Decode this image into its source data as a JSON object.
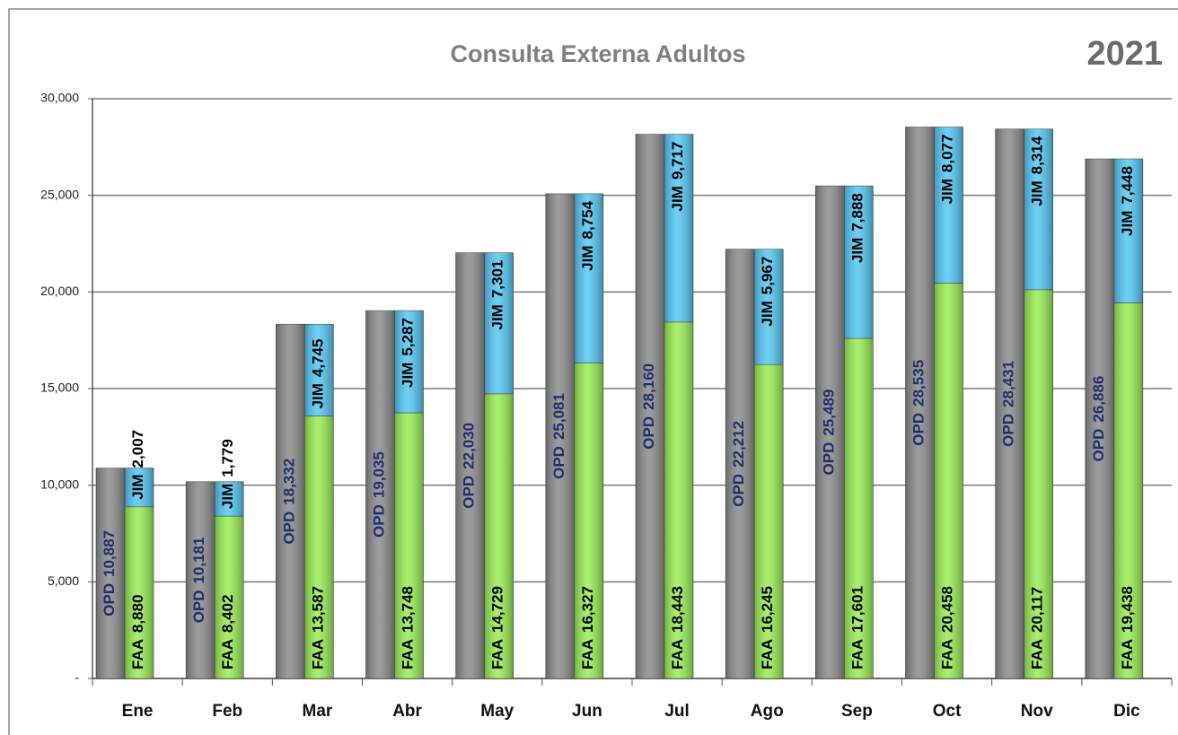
{
  "chart_data": {
    "type": "bar",
    "title": "Consulta Externa Adultos",
    "subtitle": "2021",
    "categories": [
      "Ene",
      "Feb",
      "Mar",
      "Abr",
      "May",
      "Jun",
      "Jul",
      "Ago",
      "Sep",
      "Oct",
      "Nov",
      "Dic"
    ],
    "series": [
      {
        "name": "OPD",
        "color": "#8c8c8c",
        "stack": "a",
        "values": [
          10887,
          10181,
          18332,
          19035,
          22030,
          25081,
          28160,
          22212,
          25489,
          28535,
          28431,
          26886
        ],
        "value_labels": [
          "10,887",
          "10,181",
          "18,332",
          "19,035",
          "22,030",
          "25,081",
          "28,160",
          "22,212",
          "25,489",
          "28,535",
          "28,431",
          "26,886"
        ]
      },
      {
        "name": "FAA",
        "color": "#99ee55",
        "stack": "b",
        "values": [
          8880,
          8402,
          13587,
          13748,
          14729,
          16327,
          18443,
          16245,
          17601,
          20458,
          20117,
          19438
        ],
        "value_labels": [
          "8,880",
          "8,402",
          "13,587",
          "13,748",
          "14,729",
          "16,327",
          "18,443",
          "16,245",
          "17,601",
          "20,458",
          "20,117",
          "19,438"
        ]
      },
      {
        "name": "JIM",
        "color": "#55c8f5",
        "stack": "b",
        "values": [
          2007,
          1779,
          4745,
          5287,
          7301,
          8754,
          9717,
          5967,
          7888,
          8077,
          8314,
          7448
        ],
        "value_labels": [
          "2,007",
          "1,779",
          "4,745",
          "5,287",
          "7,301",
          "8,754",
          "9,717",
          "5,967",
          "7,888",
          "8,077",
          "8,314",
          "7,448"
        ]
      }
    ],
    "ylim": [
      0,
      30000
    ],
    "yticks": [
      {
        "value": 0,
        "label": "-"
      },
      {
        "value": 5000,
        "label": "5,000"
      },
      {
        "value": 10000,
        "label": "10,000"
      },
      {
        "value": 15000,
        "label": "15,000"
      },
      {
        "value": 20000,
        "label": "20,000"
      },
      {
        "value": 25000,
        "label": "25,000"
      },
      {
        "value": 30000,
        "label": "30,000"
      }
    ],
    "grid": true
  }
}
